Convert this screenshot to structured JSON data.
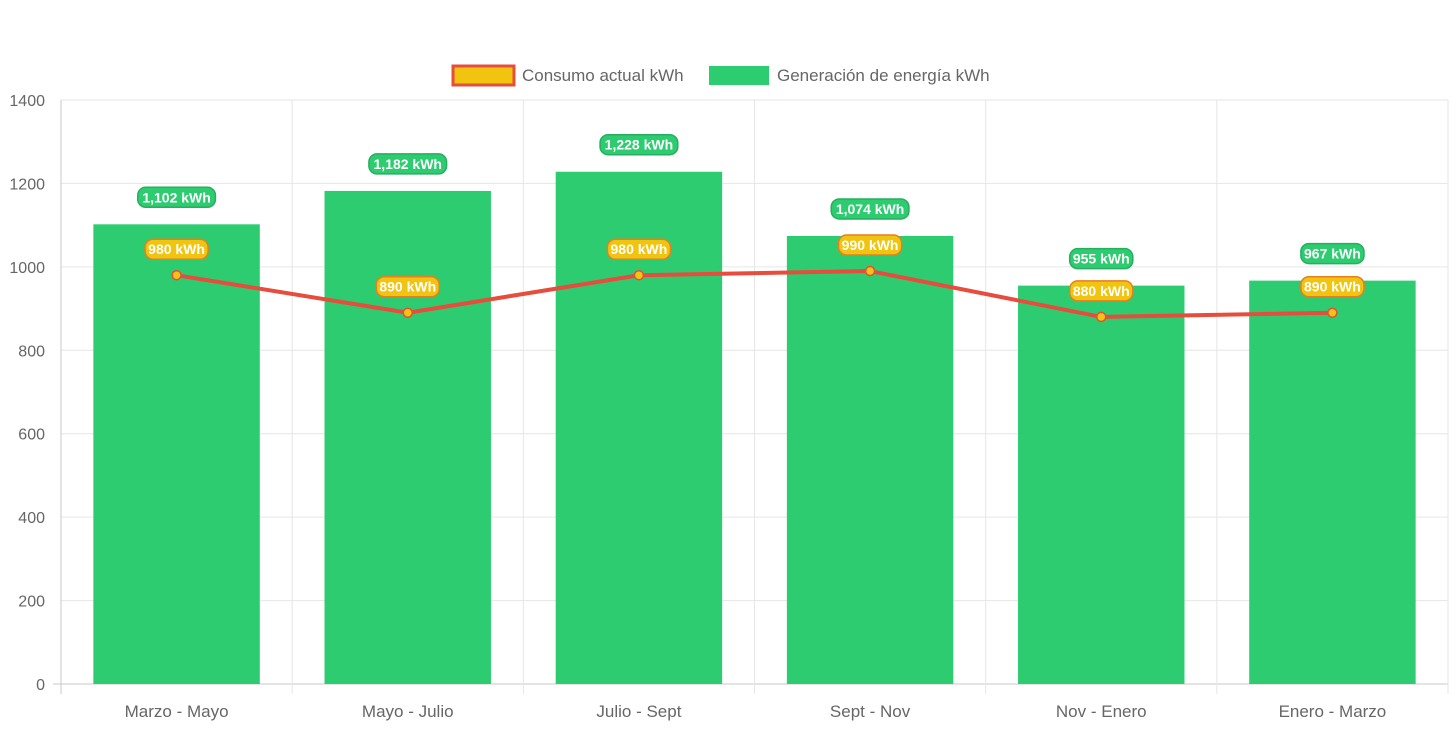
{
  "chart_data": {
    "type": "bar",
    "categories": [
      "Marzo - Mayo",
      "Mayo - Julio",
      "Julio - Sept",
      "Sept - Nov",
      "Nov - Enero",
      "Enero - Marzo"
    ],
    "series": [
      {
        "name": "Consumo actual kWh",
        "type": "line",
        "values": [
          980,
          890,
          980,
          990,
          880,
          890
        ],
        "labels": [
          "980 kWh",
          "890 kWh",
          "980 kWh",
          "990 kWh",
          "880 kWh",
          "890 kWh"
        ],
        "color": "#e74c3c",
        "fill_color": "#f1c40f"
      },
      {
        "name": "Generación de energía kWh",
        "type": "bar",
        "values": [
          1102,
          1182,
          1228,
          1074,
          955,
          967
        ],
        "labels": [
          "1,102 kWh",
          "1,182 kWh",
          "1,228 kWh",
          "1,074 kWh",
          "955 kWh",
          "967 kWh"
        ],
        "color": "#2ecc71"
      }
    ],
    "y_ticks": [
      "0",
      "200",
      "400",
      "600",
      "800",
      "1000",
      "1200",
      "1400"
    ],
    "ylim": [
      0,
      1400
    ],
    "grid": true,
    "legend_position": "top-center",
    "title": "",
    "xlabel": "",
    "ylabel": ""
  }
}
